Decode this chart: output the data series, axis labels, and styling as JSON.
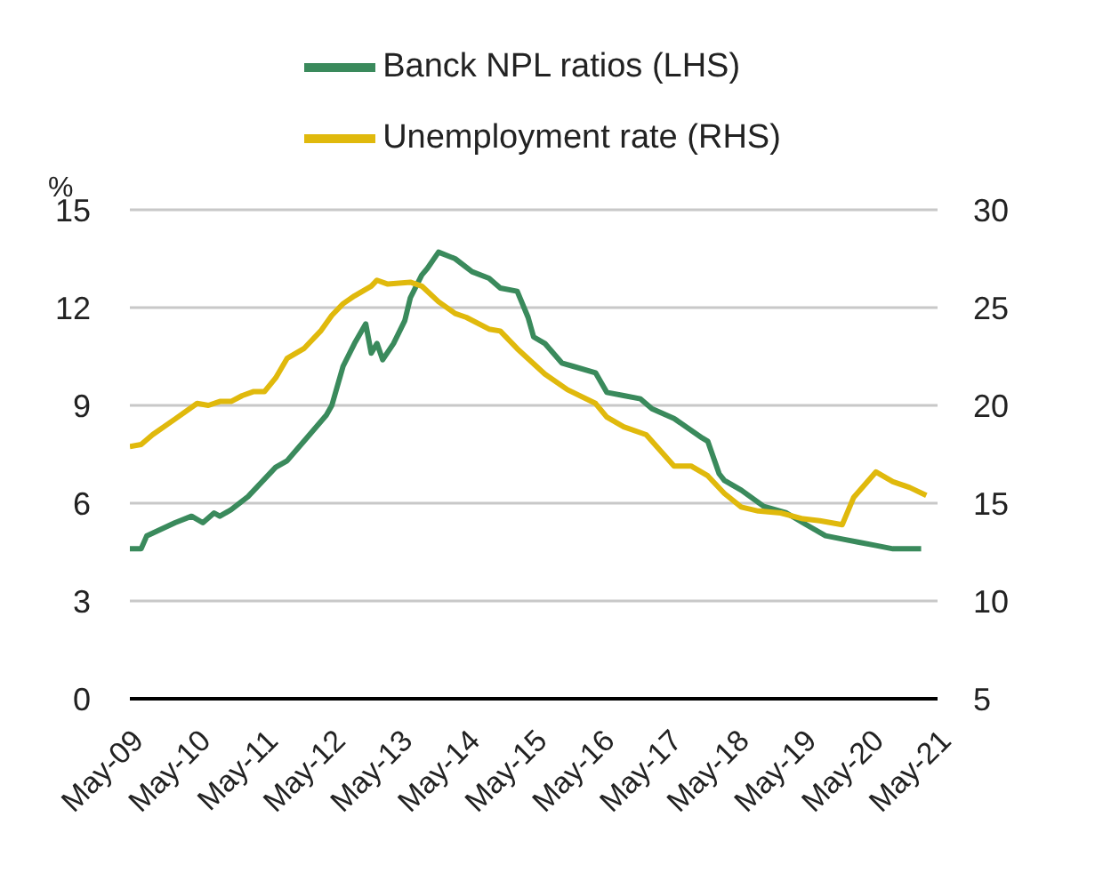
{
  "chart_data": {
    "type": "line",
    "ylabel": "%",
    "xlim": [
      "2009-05",
      "2021-05"
    ],
    "xticks": [
      {
        "value": "2009-05",
        "label": "May-09"
      },
      {
        "value": "2010-05",
        "label": "May-10"
      },
      {
        "value": "2011-05",
        "label": "May-11"
      },
      {
        "value": "2012-05",
        "label": "May-12"
      },
      {
        "value": "2013-05",
        "label": "May-13"
      },
      {
        "value": "2014-05",
        "label": "May-14"
      },
      {
        "value": "2015-05",
        "label": "May-15"
      },
      {
        "value": "2016-05",
        "label": "May-16"
      },
      {
        "value": "2017-05",
        "label": "May-17"
      },
      {
        "value": "2018-05",
        "label": "May-18"
      },
      {
        "value": "2019-05",
        "label": "May-19"
      },
      {
        "value": "2020-05",
        "label": "May-20"
      },
      {
        "value": "2021-05",
        "label": "May-21"
      }
    ],
    "ylim": [
      0,
      15
    ],
    "yticks": [
      0,
      3,
      6,
      9,
      12,
      15
    ],
    "y2lim": [
      5,
      30
    ],
    "y2ticks": [
      5,
      10,
      15,
      20,
      25,
      30
    ],
    "grid": "y",
    "legend": "top",
    "series": [
      {
        "name": "Banck NPL ratios (LHS)",
        "color": "#3a8a5c",
        "x": [
          "2009-05",
          "2009-07",
          "2009-08",
          "2010-01",
          "2010-04",
          "2010-06",
          "2010-08",
          "2010-09",
          "2010-11",
          "2011-02",
          "2011-07",
          "2011-09",
          "2012-01",
          "2012-04",
          "2012-05",
          "2012-07",
          "2012-09",
          "2012-11",
          "2012-12",
          "2013-01",
          "2013-02",
          "2013-04",
          "2013-06",
          "2013-07",
          "2013-09",
          "2013-10",
          "2013-12",
          "2014-03",
          "2014-06",
          "2014-09",
          "2014-11",
          "2015-02",
          "2015-04",
          "2015-05",
          "2015-07",
          "2015-10",
          "2015-12",
          "2016-04",
          "2016-06",
          "2016-09",
          "2016-12",
          "2017-02",
          "2017-06",
          "2017-11",
          "2017-12",
          "2018-02",
          "2018-03",
          "2018-06",
          "2018-10",
          "2019-02",
          "2019-05",
          "2019-09",
          "2019-12",
          "2020-03",
          "2020-06",
          "2020-09",
          "2021-02"
        ],
        "values": [
          4.6,
          4.6,
          5.0,
          5.4,
          5.6,
          5.4,
          5.7,
          5.6,
          5.8,
          6.2,
          7.1,
          7.3,
          8.1,
          8.7,
          9.0,
          10.2,
          10.9,
          11.5,
          10.6,
          10.9,
          10.4,
          10.9,
          11.6,
          12.3,
          13.0,
          13.2,
          13.7,
          13.5,
          13.1,
          12.9,
          12.6,
          12.5,
          11.7,
          11.1,
          10.9,
          10.3,
          10.2,
          10.0,
          9.4,
          9.3,
          9.2,
          8.9,
          8.6,
          8.0,
          7.9,
          6.9,
          6.7,
          6.4,
          5.9,
          5.7,
          5.4,
          5.0,
          4.9,
          4.8,
          4.7,
          4.6,
          4.6
        ]
      },
      {
        "name": "Unemployment rate (RHS)",
        "color": "#e0b90c",
        "axis": "y2",
        "x": [
          "2009-05",
          "2009-07",
          "2009-09",
          "2010-01",
          "2010-05",
          "2010-07",
          "2010-09",
          "2010-11",
          "2011-01",
          "2011-03",
          "2011-05",
          "2011-07",
          "2011-09",
          "2011-12",
          "2012-03",
          "2012-05",
          "2012-07",
          "2012-09",
          "2012-12",
          "2013-01",
          "2013-03",
          "2013-07",
          "2013-09",
          "2013-12",
          "2014-03",
          "2014-05",
          "2014-09",
          "2014-11",
          "2015-02",
          "2015-07",
          "2015-11",
          "2016-04",
          "2016-06",
          "2016-09",
          "2017-01",
          "2017-06",
          "2017-09",
          "2017-12",
          "2018-03",
          "2018-06",
          "2018-09",
          "2019-01",
          "2019-05",
          "2019-08",
          "2019-12",
          "2020-02",
          "2020-06",
          "2020-09",
          "2020-12",
          "2021-03"
        ],
        "values": [
          17.9,
          18.0,
          18.5,
          19.3,
          20.1,
          20.0,
          20.2,
          20.2,
          20.5,
          20.7,
          20.7,
          21.4,
          22.4,
          22.9,
          23.8,
          24.6,
          25.2,
          25.6,
          26.1,
          26.4,
          26.2,
          26.3,
          26.1,
          25.3,
          24.7,
          24.5,
          23.9,
          23.8,
          22.9,
          21.6,
          20.8,
          20.1,
          19.4,
          18.9,
          18.5,
          16.9,
          16.9,
          16.4,
          15.5,
          14.8,
          14.6,
          14.5,
          14.2,
          14.1,
          13.9,
          15.3,
          16.6,
          16.1,
          15.8,
          15.4
        ]
      }
    ]
  }
}
